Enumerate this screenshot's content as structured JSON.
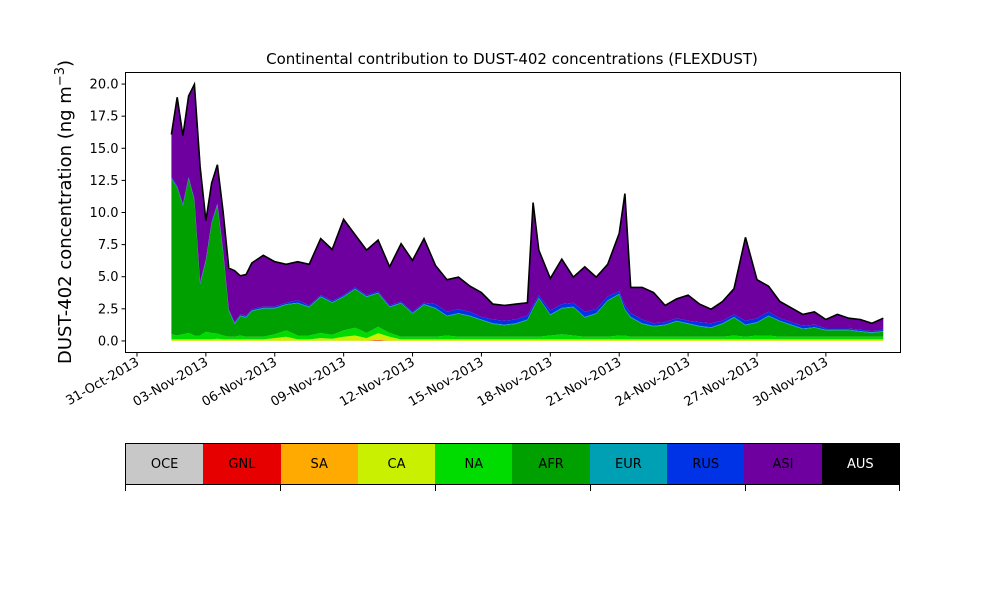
{
  "chart_data": {
    "type": "area",
    "stacked": true,
    "title": "Continental contribution to DUST-402 concentrations (FLEXDUST)",
    "ylabel": "DUST-402 concentration (ng m$^{-3}$)",
    "ylabel_parts": {
      "base": "DUST-402 concentration (ng m",
      "sup": "−3",
      "end": ")"
    },
    "xlabel": "",
    "xlim": [
      "2013-10-30T12:00",
      "2013-12-03T06:00"
    ],
    "ylim": [
      -0.9,
      20.9
    ],
    "yticks": [
      0.0,
      2.5,
      5.0,
      7.5,
      10.0,
      12.5,
      15.0,
      17.5,
      20.0
    ],
    "ytick_labels": [
      "0.0",
      "2.5",
      "5.0",
      "7.5",
      "10.0",
      "12.5",
      "15.0",
      "17.5",
      "20.0"
    ],
    "xticks": [
      "2013-10-31",
      "2013-11-03",
      "2013-11-06",
      "2013-11-09",
      "2013-11-12",
      "2013-11-15",
      "2013-11-18",
      "2013-11-21",
      "2013-11-24",
      "2013-11-27",
      "2013-11-30"
    ],
    "xtick_labels": [
      "31-Oct-2013",
      "03-Nov-2013",
      "06-Nov-2013",
      "09-Nov-2013",
      "12-Nov-2013",
      "15-Nov-2013",
      "18-Nov-2013",
      "21-Nov-2013",
      "24-Nov-2013",
      "27-Nov-2013",
      "30-Nov-2013"
    ],
    "grid": false,
    "x": [
      "2013-11-01T12:00",
      "2013-11-01T18:00",
      "2013-11-02T00:00",
      "2013-11-02T06:00",
      "2013-11-02T12:00",
      "2013-11-02T18:00",
      "2013-11-03T00:00",
      "2013-11-03T06:00",
      "2013-11-03T12:00",
      "2013-11-03T18:00",
      "2013-11-04T00:00",
      "2013-11-04T06:00",
      "2013-11-04T12:00",
      "2013-11-04T18:00",
      "2013-11-05T00:00",
      "2013-11-05T12:00",
      "2013-11-06T00:00",
      "2013-11-06T12:00",
      "2013-11-07T00:00",
      "2013-11-07T12:00",
      "2013-11-08T00:00",
      "2013-11-08T12:00",
      "2013-11-09T00:00",
      "2013-11-09T12:00",
      "2013-11-10T00:00",
      "2013-11-10T12:00",
      "2013-11-11T00:00",
      "2013-11-11T12:00",
      "2013-11-12T00:00",
      "2013-11-12T12:00",
      "2013-11-13T00:00",
      "2013-11-13T12:00",
      "2013-11-14T00:00",
      "2013-11-14T12:00",
      "2013-11-15T00:00",
      "2013-11-15T12:00",
      "2013-11-16T00:00",
      "2013-11-16T12:00",
      "2013-11-17T00:00",
      "2013-11-17T06:00",
      "2013-11-17T12:00",
      "2013-11-18T00:00",
      "2013-11-18T12:00",
      "2013-11-19T00:00",
      "2013-11-19T12:00",
      "2013-11-20T00:00",
      "2013-11-20T12:00",
      "2013-11-21T00:00",
      "2013-11-21T06:00",
      "2013-11-21T12:00",
      "2013-11-22T00:00",
      "2013-11-22T12:00",
      "2013-11-23T00:00",
      "2013-11-23T12:00",
      "2013-11-24T00:00",
      "2013-11-24T12:00",
      "2013-11-25T00:00",
      "2013-11-25T12:00",
      "2013-11-26T00:00",
      "2013-11-26T12:00",
      "2013-11-27T00:00",
      "2013-11-27T12:00",
      "2013-11-28T00:00",
      "2013-11-28T12:00",
      "2013-11-29T00:00",
      "2013-11-29T12:00",
      "2013-11-30T00:00",
      "2013-11-30T12:00",
      "2013-12-01T00:00",
      "2013-12-01T12:00",
      "2013-12-02T00:00",
      "2013-12-02T12:00"
    ],
    "series": [
      {
        "name": "OCE",
        "color": "#c8c8c8",
        "values": [
          0.0,
          0.0,
          0.0,
          0.0,
          0.0,
          0.0,
          0.0,
          0.0,
          0.0,
          0.0,
          0.0,
          0.0,
          0.0,
          0.0,
          0.0,
          0.0,
          0.0,
          0.0,
          0.0,
          0.0,
          0.0,
          0.0,
          0.0,
          0.0,
          0.0,
          0.0,
          0.0,
          0.0,
          0.0,
          0.0,
          0.0,
          0.0,
          0.0,
          0.0,
          0.0,
          0.0,
          0.0,
          0.0,
          0.0,
          0.0,
          0.0,
          0.0,
          0.0,
          0.0,
          0.0,
          0.0,
          0.0,
          0.0,
          0.0,
          0.0,
          0.0,
          0.0,
          0.0,
          0.0,
          0.0,
          0.0,
          0.0,
          0.0,
          0.0,
          0.0,
          0.0,
          0.0,
          0.0,
          0.0,
          0.0,
          0.0,
          0.0,
          0.0,
          0.0,
          0.0,
          0.0,
          0.0
        ]
      },
      {
        "name": "GNL",
        "color": "#e60000",
        "values": [
          0.0,
          0.0,
          0.0,
          0.0,
          0.0,
          0.0,
          0.0,
          0.0,
          0.0,
          0.0,
          0.0,
          0.0,
          0.0,
          0.0,
          0.0,
          0.0,
          0.0,
          0.0,
          0.0,
          0.0,
          0.0,
          0.0,
          0.0,
          0.0,
          0.0,
          0.05,
          0.0,
          0.0,
          0.0,
          0.0,
          0.0,
          0.0,
          0.0,
          0.0,
          0.0,
          0.0,
          0.0,
          0.0,
          0.0,
          0.0,
          0.0,
          0.0,
          0.0,
          0.0,
          0.0,
          0.0,
          0.0,
          0.0,
          0.0,
          0.0,
          0.0,
          0.0,
          0.0,
          0.0,
          0.0,
          0.0,
          0.0,
          0.0,
          0.0,
          0.0,
          0.0,
          0.0,
          0.0,
          0.0,
          0.0,
          0.0,
          0.0,
          0.0,
          0.0,
          0.0,
          0.0,
          0.0
        ]
      },
      {
        "name": "SA",
        "color": "#ffaa00",
        "values": [
          0.02,
          0.02,
          0.02,
          0.02,
          0.02,
          0.02,
          0.02,
          0.02,
          0.02,
          0.02,
          0.02,
          0.02,
          0.02,
          0.02,
          0.02,
          0.02,
          0.02,
          0.02,
          0.02,
          0.02,
          0.02,
          0.02,
          0.02,
          0.02,
          0.02,
          0.05,
          0.02,
          0.02,
          0.02,
          0.02,
          0.02,
          0.02,
          0.02,
          0.02,
          0.02,
          0.02,
          0.02,
          0.02,
          0.02,
          0.02,
          0.02,
          0.02,
          0.02,
          0.02,
          0.02,
          0.02,
          0.02,
          0.02,
          0.02,
          0.02,
          0.02,
          0.02,
          0.02,
          0.02,
          0.02,
          0.02,
          0.02,
          0.02,
          0.02,
          0.02,
          0.02,
          0.02,
          0.02,
          0.02,
          0.02,
          0.02,
          0.02,
          0.02,
          0.02,
          0.02,
          0.02,
          0.02
        ]
      },
      {
        "name": "CA",
        "color": "#c8f000",
        "values": [
          0.1,
          0.1,
          0.1,
          0.1,
          0.1,
          0.1,
          0.1,
          0.1,
          0.15,
          0.1,
          0.1,
          0.1,
          0.1,
          0.1,
          0.1,
          0.1,
          0.2,
          0.3,
          0.1,
          0.1,
          0.2,
          0.15,
          0.3,
          0.4,
          0.2,
          0.5,
          0.3,
          0.1,
          0.1,
          0.1,
          0.1,
          0.1,
          0.1,
          0.1,
          0.1,
          0.1,
          0.1,
          0.1,
          0.1,
          0.1,
          0.1,
          0.1,
          0.1,
          0.1,
          0.1,
          0.1,
          0.1,
          0.1,
          0.1,
          0.1,
          0.1,
          0.1,
          0.1,
          0.1,
          0.1,
          0.1,
          0.1,
          0.1,
          0.1,
          0.1,
          0.1,
          0.1,
          0.1,
          0.1,
          0.1,
          0.1,
          0.1,
          0.1,
          0.1,
          0.1,
          0.1,
          0.1
        ]
      },
      {
        "name": "NA",
        "color": "#00dc00",
        "values": [
          0.4,
          0.3,
          0.4,
          0.5,
          0.3,
          0.3,
          0.6,
          0.5,
          0.4,
          0.3,
          0.2,
          0.2,
          0.3,
          0.2,
          0.2,
          0.2,
          0.3,
          0.5,
          0.3,
          0.3,
          0.4,
          0.3,
          0.5,
          0.6,
          0.4,
          0.5,
          0.3,
          0.2,
          0.2,
          0.2,
          0.2,
          0.3,
          0.2,
          0.2,
          0.2,
          0.2,
          0.2,
          0.2,
          0.2,
          0.2,
          0.2,
          0.3,
          0.4,
          0.3,
          0.2,
          0.2,
          0.2,
          0.3,
          0.3,
          0.2,
          0.2,
          0.2,
          0.2,
          0.2,
          0.2,
          0.2,
          0.2,
          0.2,
          0.3,
          0.2,
          0.3,
          0.3,
          0.2,
          0.2,
          0.2,
          0.2,
          0.2,
          0.2,
          0.2,
          0.2,
          0.2,
          0.2
        ]
      },
      {
        "name": "AFR",
        "color": "#00a000",
        "values": [
          12.1,
          11.5,
          10.0,
          12.0,
          10.5,
          4.0,
          5.5,
          8.5,
          10.0,
          6.5,
          2.0,
          1.0,
          1.5,
          1.5,
          2.0,
          2.2,
          2.0,
          2.0,
          2.5,
          2.2,
          2.8,
          2.5,
          2.6,
          3.0,
          2.8,
          2.6,
          2.0,
          2.6,
          1.8,
          2.5,
          2.2,
          1.5,
          1.8,
          1.6,
          1.3,
          1.0,
          0.9,
          1.0,
          1.3,
          2.2,
          3.0,
          1.6,
          2.0,
          2.2,
          1.5,
          1.8,
          2.8,
          3.2,
          2.0,
          1.5,
          1.0,
          0.8,
          0.9,
          1.2,
          1.0,
          0.8,
          0.7,
          1.0,
          1.4,
          0.9,
          1.0,
          1.5,
          1.2,
          0.9,
          0.6,
          0.7,
          0.5,
          0.5,
          0.5,
          0.4,
          0.3,
          0.4
        ]
      },
      {
        "name": "EUR",
        "color": "#00a0b4",
        "values": [
          0.05,
          0.05,
          0.05,
          0.05,
          0.05,
          0.05,
          0.05,
          0.05,
          0.05,
          0.05,
          0.05,
          0.05,
          0.05,
          0.05,
          0.05,
          0.05,
          0.05,
          0.05,
          0.05,
          0.05,
          0.05,
          0.05,
          0.05,
          0.05,
          0.05,
          0.05,
          0.05,
          0.05,
          0.05,
          0.05,
          0.05,
          0.05,
          0.05,
          0.05,
          0.05,
          0.05,
          0.05,
          0.05,
          0.05,
          0.05,
          0.05,
          0.05,
          0.05,
          0.05,
          0.05,
          0.05,
          0.05,
          0.05,
          0.05,
          0.05,
          0.05,
          0.05,
          0.05,
          0.05,
          0.05,
          0.05,
          0.05,
          0.05,
          0.05,
          0.05,
          0.05,
          0.05,
          0.05,
          0.05,
          0.05,
          0.05,
          0.05,
          0.05,
          0.05,
          0.05,
          0.05,
          0.05
        ]
      },
      {
        "name": "RUS",
        "color": "#0032e6",
        "values": [
          0.1,
          0.1,
          0.1,
          0.1,
          0.1,
          0.1,
          0.1,
          0.1,
          0.1,
          0.1,
          0.1,
          0.1,
          0.1,
          0.1,
          0.1,
          0.1,
          0.1,
          0.1,
          0.2,
          0.1,
          0.1,
          0.1,
          0.1,
          0.1,
          0.1,
          0.1,
          0.1,
          0.1,
          0.1,
          0.1,
          0.3,
          0.3,
          0.3,
          0.3,
          0.2,
          0.3,
          0.3,
          0.3,
          0.3,
          0.2,
          0.2,
          0.3,
          0.3,
          0.3,
          0.4,
          0.3,
          0.3,
          0.2,
          0.3,
          0.3,
          0.3,
          0.2,
          0.2,
          0.2,
          0.2,
          0.3,
          0.3,
          0.2,
          0.2,
          0.3,
          0.3,
          0.3,
          0.2,
          0.2,
          0.2,
          0.2,
          0.1,
          0.1,
          0.1,
          0.1,
          0.1,
          0.1
        ]
      },
      {
        "name": "ASI",
        "color": "#6e00a0",
        "values": [
          3.3,
          6.9,
          5.3,
          6.3,
          8.9,
          9.0,
          3.0,
          3.0,
          3.0,
          3.0,
          3.2,
          4.0,
          3.0,
          3.2,
          3.6,
          4.0,
          3.5,
          3.0,
          3.0,
          3.2,
          4.4,
          4.0,
          5.9,
          4.1,
          3.5,
          4.0,
          3.0,
          4.5,
          4.0,
          5.0,
          3.0,
          2.5,
          2.5,
          2.0,
          1.9,
          1.2,
          1.2,
          1.2,
          1.0,
          8.0,
          3.5,
          2.5,
          3.5,
          2.0,
          3.5,
          2.5,
          2.5,
          4.5,
          8.7,
          2.0,
          2.5,
          2.4,
          1.3,
          1.5,
          2.0,
          1.4,
          1.1,
          1.5,
          2.0,
          6.5,
          3.0,
          2.0,
          1.3,
          1.1,
          0.9,
          1.0,
          0.7,
          1.1,
          0.8,
          0.8,
          0.6,
          0.9
        ]
      },
      {
        "name": "AUS",
        "color": "#000000",
        "values": [
          0.0,
          0.0,
          0.0,
          0.0,
          0.0,
          0.0,
          0.0,
          0.0,
          0.0,
          0.0,
          0.0,
          0.0,
          0.0,
          0.0,
          0.0,
          0.0,
          0.0,
          0.0,
          0.0,
          0.0,
          0.0,
          0.0,
          0.0,
          0.0,
          0.0,
          0.0,
          0.0,
          0.0,
          0.0,
          0.0,
          0.0,
          0.0,
          0.0,
          0.0,
          0.0,
          0.0,
          0.0,
          0.0,
          0.0,
          0.0,
          0.0,
          0.0,
          0.0,
          0.0,
          0.0,
          0.0,
          0.0,
          0.0,
          0.0,
          0.0,
          0.0,
          0.0,
          0.0,
          0.0,
          0.0,
          0.0,
          0.0,
          0.0,
          0.0,
          0.0,
          0.0,
          0.0,
          0.0,
          0.0,
          0.0,
          0.0,
          0.0,
          0.0,
          0.0,
          0.0,
          0.0,
          0.0
        ]
      }
    ],
    "total_line_color": "#000000",
    "legend_placement": "bottom",
    "legend_entries": [
      "OCE",
      "GNL",
      "SA",
      "CA",
      "NA",
      "AFR",
      "EUR",
      "RUS",
      "ASI",
      "AUS"
    ],
    "legend_text_colors": {
      "AUS": "#ffffff"
    }
  }
}
